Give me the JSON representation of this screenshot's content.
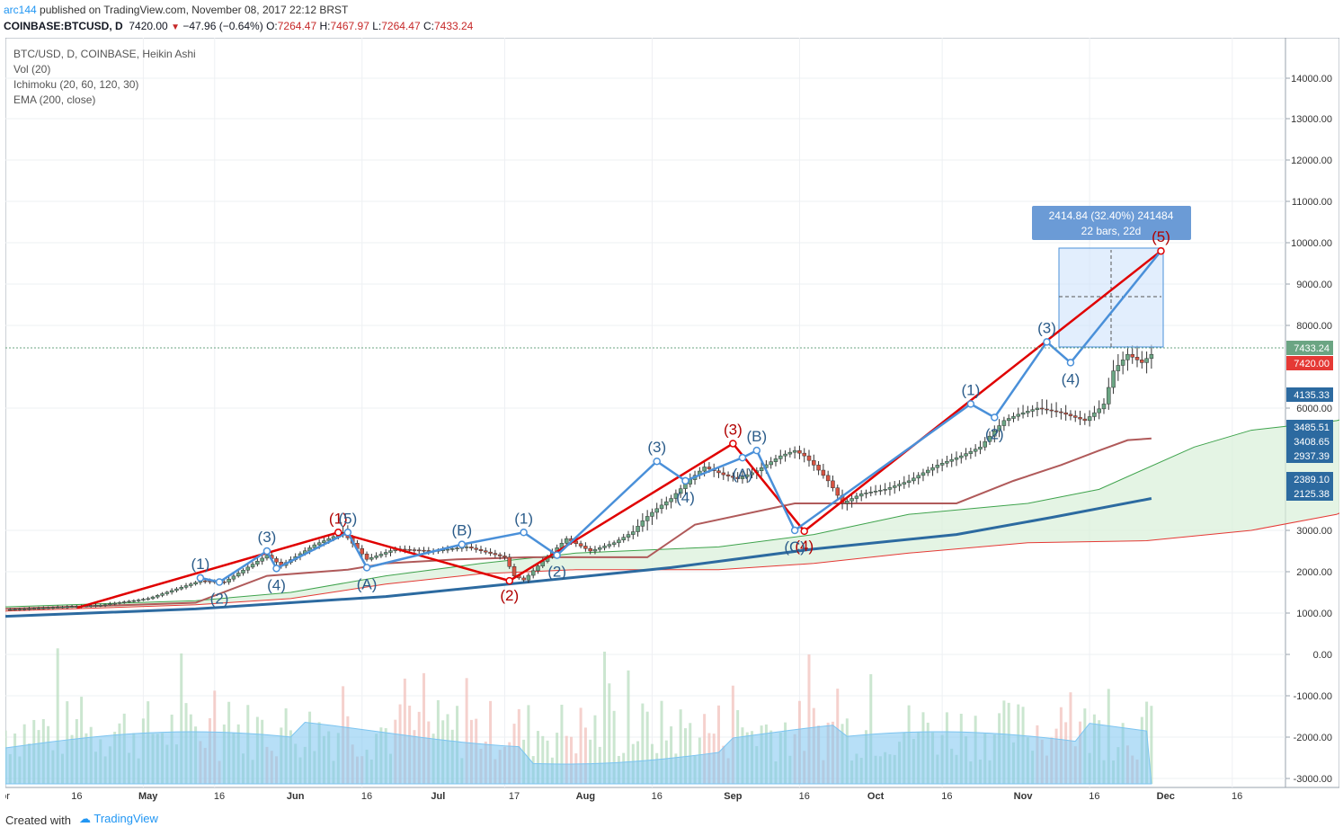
{
  "header": {
    "user": "arc144",
    "published": " published on TradingView.com, November 08, 2017 22:12 BRST",
    "symbol": "COINBASE:BTCUSD, D",
    "last": "7420.00",
    "change": "−47.96 (−0.64%)",
    "o_label": "O:",
    "o_val": "7264.47",
    "h_label": "H:",
    "h_val": "7467.97",
    "l_label": "L:",
    "l_val": "7264.47",
    "c_label": "C:",
    "c_val": "7433.24"
  },
  "legend": {
    "main": "BTC/USD, D, COINBASE, Heikin Ashi",
    "vol": "Vol (20)",
    "ichimoku": "Ichimoku (20, 60, 120, 30)",
    "ema": "EMA (200, close)"
  },
  "footer": {
    "created": "Created with",
    "brand": "TradingView"
  },
  "colors": {
    "up": "#6ba583",
    "down": "#d75442",
    "wave_red": "#e00000",
    "wave_blue": "#4a90d9",
    "label_blue": "#2b5c8a",
    "label_red": "#b00000",
    "ema": "#2c6aa0",
    "kijun": "#b05a5a",
    "cloud": "#d8efd8",
    "vol_ma": "#7cc4f0"
  },
  "chart_data": {
    "type": "candlestick",
    "title": "BTC/USD, D, COINBASE, Heikin Ashi",
    "x_ticks": [
      "or",
      "16",
      "May",
      "16",
      "Jun",
      "16",
      "Jul",
      "17",
      "Aug",
      "16",
      "Sep",
      "16",
      "Oct",
      "16",
      "Nov",
      "16",
      "Dec",
      "16"
    ],
    "y_ticks": [
      "14000.00",
      "13000.00",
      "12000.00",
      "11000.00",
      "10000.00",
      "9000.00",
      "8000.00",
      "6000.00",
      "3000.00",
      "2000.00",
      "1000.00",
      "0.00",
      "-1000.00",
      "-2000.00",
      "-3000.00"
    ],
    "price_badges": [
      {
        "label": "7433.24",
        "color": "#6ba583"
      },
      {
        "label": "7420.00",
        "color": "#e53935"
      },
      {
        "label": "4135.33",
        "color": "#2c6aa0"
      },
      {
        "label": "3485.51",
        "color": "#2c6aa0"
      },
      {
        "label": "3408.65",
        "color": "#2c6aa0"
      },
      {
        "label": "2937.39",
        "color": "#2c6aa0"
      },
      {
        "label": "2389.10",
        "color": "#2c6aa0"
      },
      {
        "label": "2125.38",
        "color": "#2c6aa0"
      }
    ],
    "measure_box": {
      "line1": "2414.84 (32.40%) 241484",
      "line2": "22 bars, 22d"
    },
    "waves_red": [
      {
        "label": "(1)",
        "date": "2017-06-10",
        "price": 2950
      },
      {
        "label": "(2)",
        "date": "2017-07-16",
        "price": 1780
      },
      {
        "label": "(3)",
        "date": "2017-09-01",
        "price": 4900
      },
      {
        "label": "(4)",
        "date": "2017-09-16",
        "price": 2980
      },
      {
        "label": "(5)",
        "date": "2017-11-30",
        "price": 9800
      }
    ],
    "waves_blue": [
      {
        "label": "(1)",
        "date": "2017-05-12",
        "price": 1850
      },
      {
        "label": "(2)",
        "date": "2017-05-16",
        "price": 1750
      },
      {
        "label": "(3)",
        "date": "2017-05-26",
        "price": 2500
      },
      {
        "label": "(4)",
        "date": "2017-05-28",
        "price": 2080
      },
      {
        "label": "(5)",
        "date": "2017-06-12",
        "price": 2950
      },
      {
        "label": "(A)",
        "date": "2017-06-16",
        "price": 2100
      },
      {
        "label": "(B)",
        "date": "2017-07-06",
        "price": 2660
      },
      {
        "label": "(1)",
        "date": "2017-07-19",
        "price": 2950
      },
      {
        "label": "(2)",
        "date": "2017-07-26",
        "price": 2400
      },
      {
        "label": "(3)",
        "date": "2017-08-16",
        "price": 4400
      },
      {
        "label": "(4)",
        "date": "2017-08-22",
        "price": 3900
      },
      {
        "label": "(A)",
        "date": "2017-09-03",
        "price": 4500
      },
      {
        "label": "(B)",
        "date": "2017-09-06",
        "price": 4700
      },
      {
        "label": "(C)",
        "date": "2017-09-14",
        "price": 3000
      },
      {
        "label": "(1)",
        "date": "2017-10-21",
        "price": 6100
      },
      {
        "label": "(2)",
        "date": "2017-10-26",
        "price": 5700
      },
      {
        "label": "(3)",
        "date": "2017-11-06",
        "price": 7600
      },
      {
        "label": "(4)",
        "date": "2017-11-11",
        "price": 7100
      }
    ]
  }
}
